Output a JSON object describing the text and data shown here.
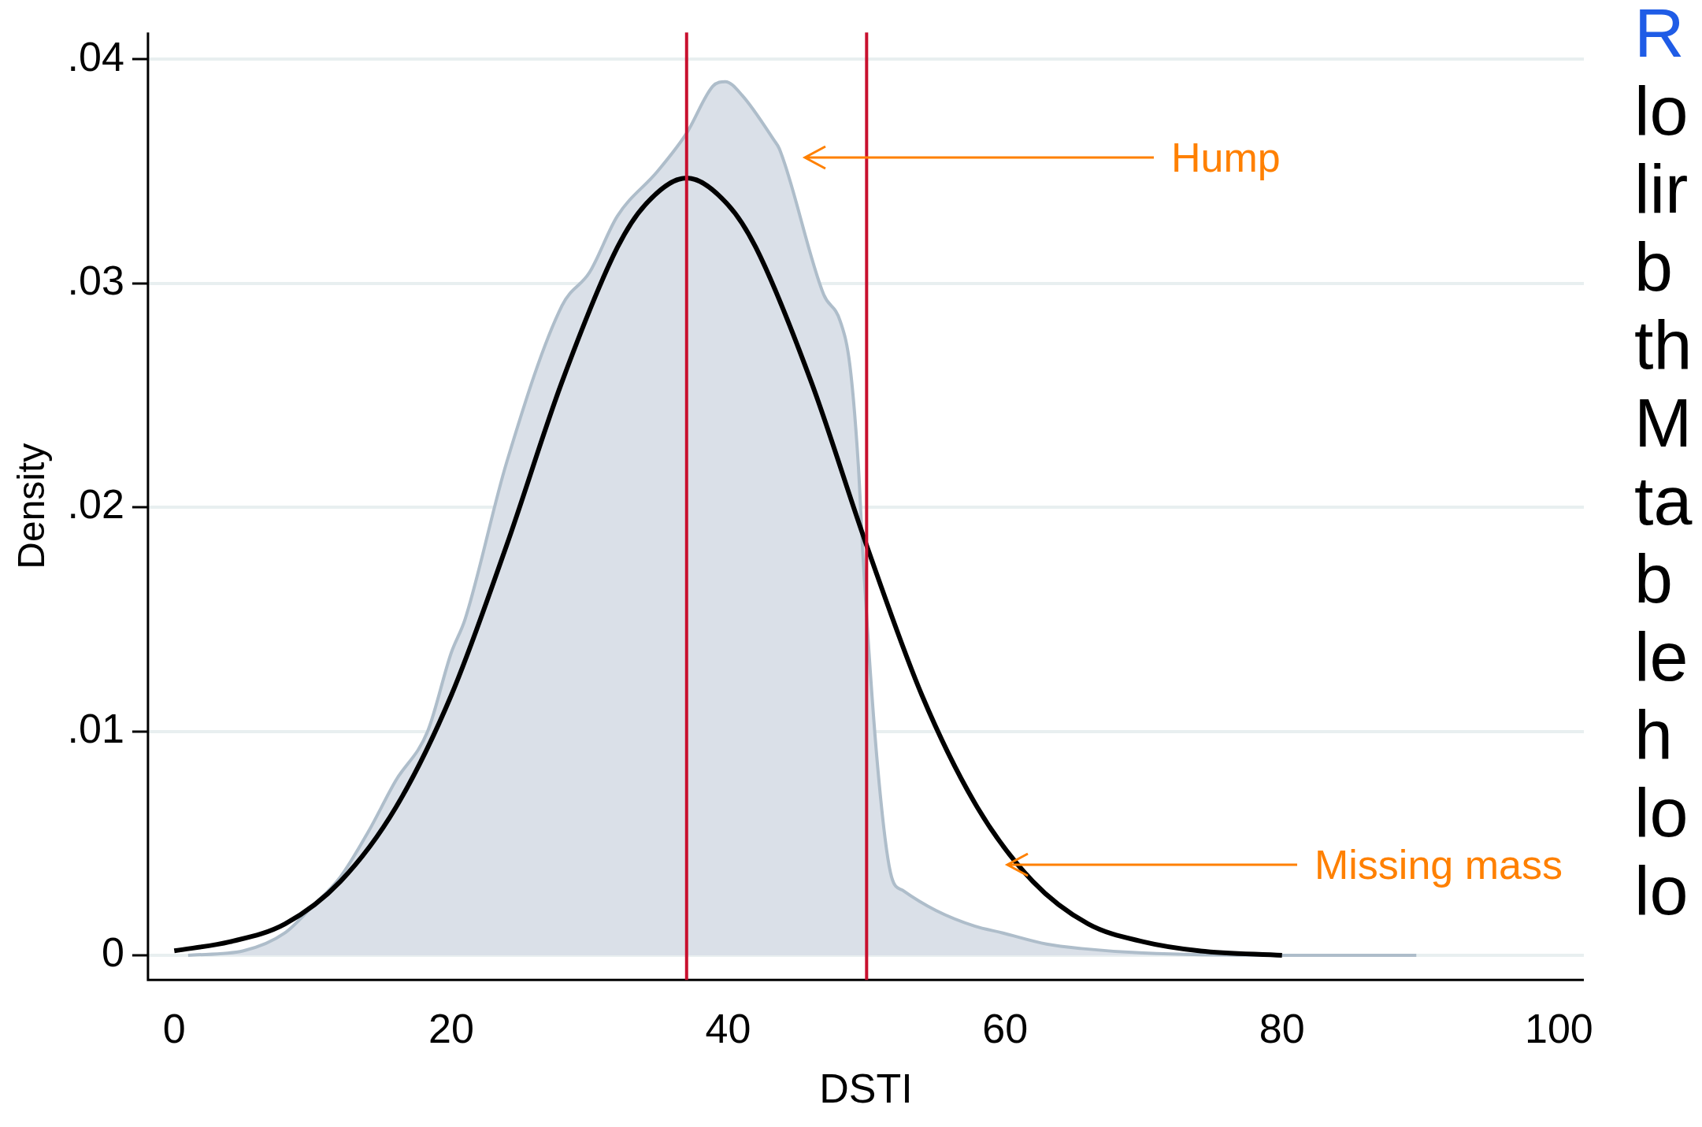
{
  "chart_data": {
    "type": "area",
    "xlabel": "DSTI",
    "ylabel": "Density",
    "xlim": [
      -1.9,
      101.8
    ],
    "ylim": [
      -0.0011,
      0.0412
    ],
    "xticks": [
      0,
      20,
      40,
      60,
      80,
      100
    ],
    "yticks": [
      0,
      {
        "value": 0.01,
        "label": ".01"
      },
      {
        "value": 0.02,
        "label": ".02"
      },
      {
        "value": 0.03,
        "label": ".03"
      },
      {
        "value": 0.04,
        "label": ".04"
      }
    ],
    "grid": "y",
    "legend": false,
    "series": [
      {
        "color": "#dae0e8",
        "x": [
          1,
          5,
          8,
          10,
          12,
          14,
          16,
          18.3,
          20,
          21,
          24,
          28,
          30,
          32,
          34.9,
          37,
          38.9,
          39.8,
          41,
          43.3,
          43.7,
          46.9,
          48.1,
          48.8,
          49.4,
          49.75,
          50.8,
          51.8,
          52.6,
          55,
          57.8,
          59.8,
          63,
          65.5,
          70,
          80,
          89.7
        ],
        "values": [
          0,
          0.0002,
          0.001,
          0.0022,
          0.0035,
          0.0055,
          0.0078,
          0.01,
          0.0135,
          0.015,
          0.022,
          0.029,
          0.0305,
          0.033,
          0.035,
          0.0367,
          0.0388,
          0.039,
          0.0384,
          0.0364,
          0.036,
          0.0295,
          0.0283,
          0.0263,
          0.0219,
          0.0177,
          0.0084,
          0.0035,
          0.0029,
          0.002,
          0.0013,
          0.001,
          0.0005,
          0.0003,
          0.0001,
          0,
          0
        ]
      },
      {
        "type": "line",
        "color": "#000000",
        "x": [
          0,
          4,
          8,
          12,
          16,
          20,
          24,
          28,
          32,
          34,
          37,
          40,
          42,
          46,
          50,
          54,
          58,
          62,
          66,
          70,
          74,
          80
        ],
        "values": [
          0.0002,
          0.0006,
          0.0014,
          0.0033,
          0.0066,
          0.0116,
          0.0183,
          0.0256,
          0.0316,
          0.0335,
          0.0347,
          0.0335,
          0.0316,
          0.0256,
          0.0183,
          0.0116,
          0.0066,
          0.0033,
          0.0014,
          0.0006,
          0.0002,
          0
        ]
      }
    ],
    "ref_lines": [
      {
        "axis": "x",
        "value": 37,
        "color": "#c8102e"
      },
      {
        "axis": "x",
        "value": 50,
        "color": "#c8102e"
      }
    ],
    "annotations": [
      "Hump",
      "Missing mass",
      "R",
      "lo",
      "lir",
      "b",
      "th",
      "M",
      "ta",
      "b",
      "le",
      "h",
      "lo",
      "lo"
    ]
  }
}
